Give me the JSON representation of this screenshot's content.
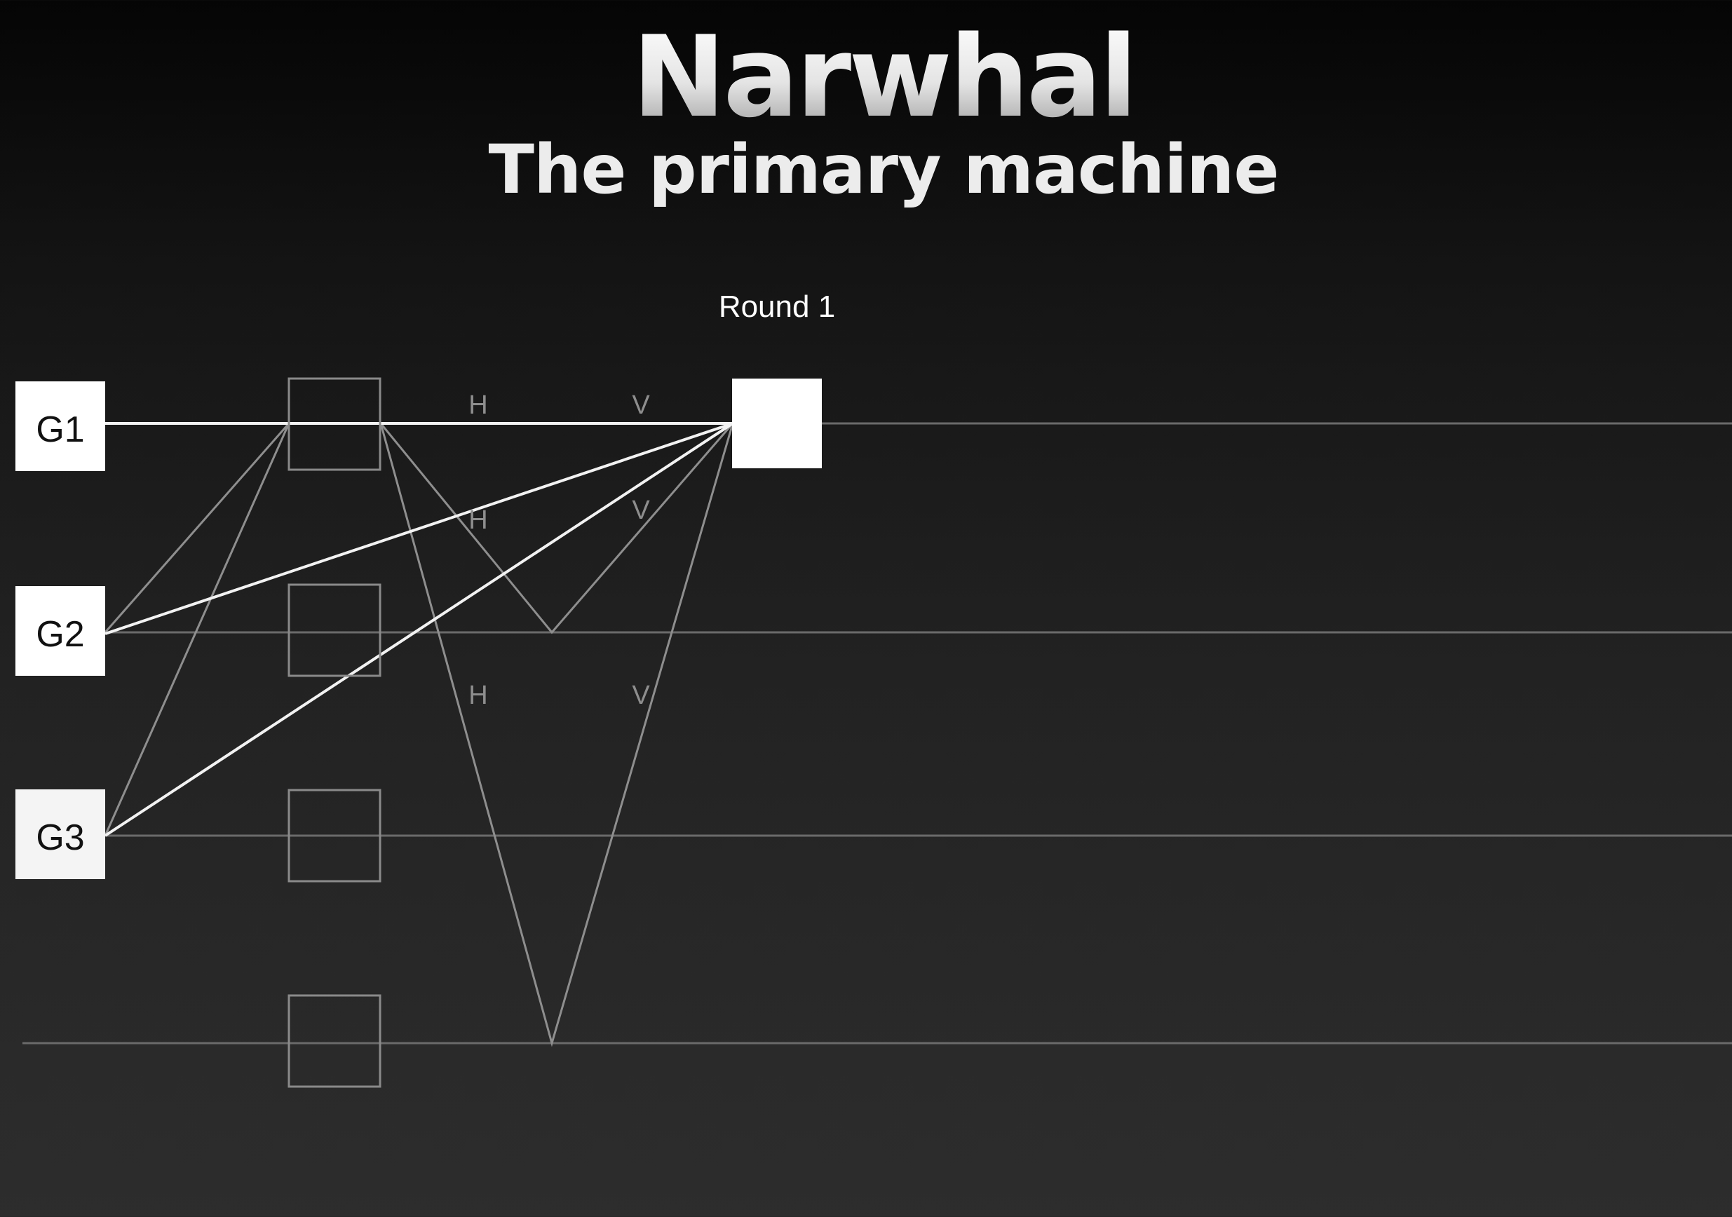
{
  "title": "Narwhal",
  "subtitle": "The primary machine",
  "round_label": "Round 1",
  "validators": [
    {
      "label": "G1"
    },
    {
      "label": "G2"
    },
    {
      "label": "G3"
    }
  ],
  "edge_labels": {
    "h": "H",
    "v": "V"
  }
}
